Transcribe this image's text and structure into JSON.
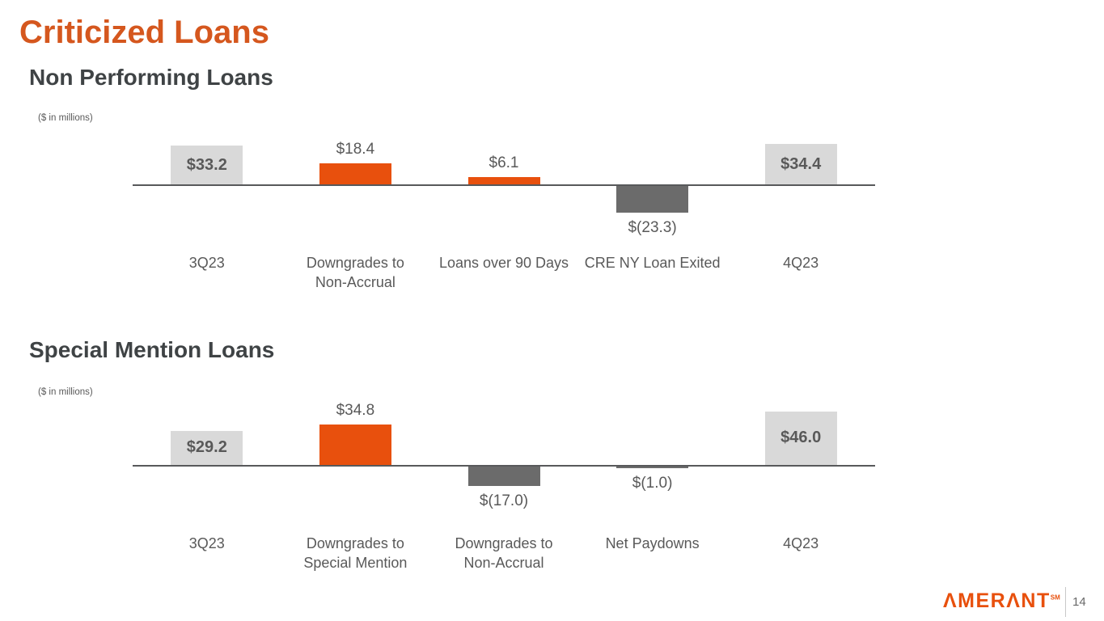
{
  "slide": {
    "title": "Criticized Loans",
    "footer": {
      "logo_text": "AMERANT",
      "logo_superscript": "SM",
      "page_number": "14"
    }
  },
  "colors": {
    "title_orange": "#D5571E",
    "bar_orange": "#E8500D",
    "bar_total_gray": "#D9D9D9",
    "bar_decrease_gray": "#6B6B6B",
    "heading_gray": "#3F4345",
    "text_gray": "#595959",
    "axis_gray": "#58595B",
    "logo_orange": "#E8500D"
  },
  "chart_data": [
    {
      "type": "bar",
      "subtype": "waterfall",
      "title": "Non Performing Loans",
      "units_note": "($ in millions)",
      "categories": [
        "3Q23",
        "Downgrades to\nNon-Accrual",
        "Loans over 90 Days",
        "CRE NY Loan Exited",
        "4Q23"
      ],
      "values": [
        33.2,
        18.4,
        6.1,
        -23.3,
        34.4
      ],
      "value_labels": [
        "$33.2",
        "$18.4",
        "$6.1",
        "$(23.3)",
        "$34.4"
      ],
      "roles": [
        "total",
        "increase",
        "increase",
        "decrease",
        "total"
      ],
      "ylim": [
        -25,
        36
      ],
      "grid": false,
      "legend": false
    },
    {
      "type": "bar",
      "subtype": "waterfall",
      "title": "Special Mention Loans",
      "units_note": "($ in millions)",
      "categories": [
        "3Q23",
        "Downgrades to\nSpecial Mention",
        "Downgrades to\nNon-Accrual",
        "Net Paydowns",
        "4Q23"
      ],
      "values": [
        29.2,
        34.8,
        -17.0,
        -1.0,
        46.0
      ],
      "value_labels": [
        "$29.2",
        "$34.8",
        "$(17.0)",
        "$(1.0)",
        "$46.0"
      ],
      "roles": [
        "total",
        "increase",
        "decrease",
        "decrease",
        "total"
      ],
      "ylim": [
        -18,
        47
      ],
      "grid": false,
      "legend": false
    }
  ]
}
